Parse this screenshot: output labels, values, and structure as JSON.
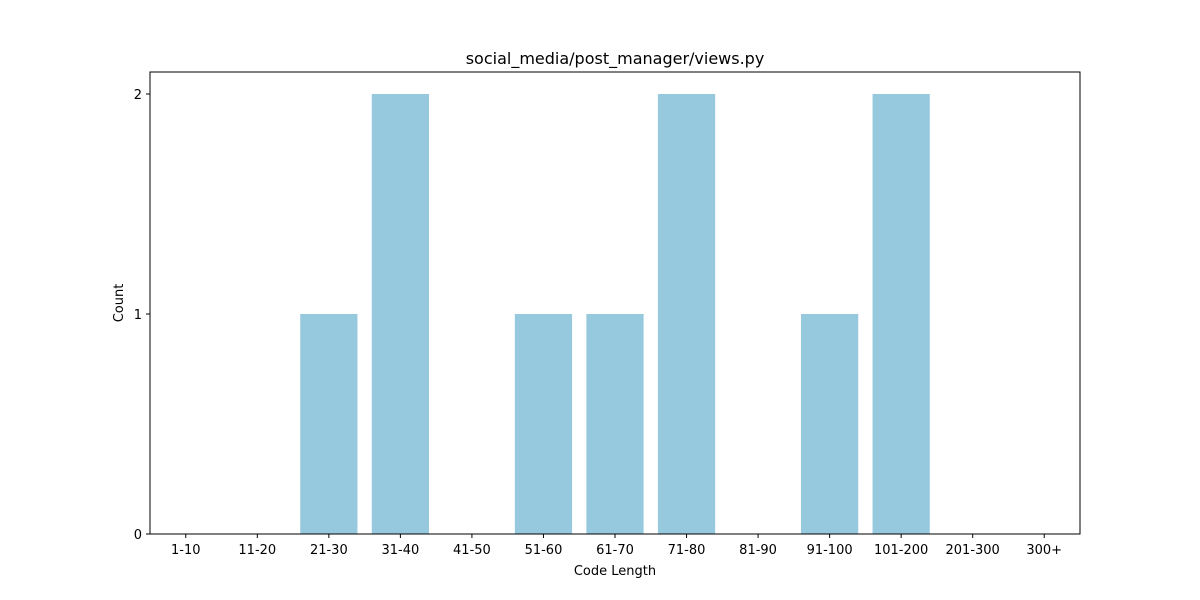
{
  "chart_data": {
    "type": "bar",
    "title": "social_media/post_manager/views.py",
    "xlabel": "Code Length",
    "ylabel": "Count",
    "categories": [
      "1-10",
      "11-20",
      "21-30",
      "31-40",
      "41-50",
      "51-60",
      "61-70",
      "71-80",
      "81-90",
      "91-100",
      "101-200",
      "201-300",
      "300+"
    ],
    "values": [
      0,
      0,
      1,
      2,
      0,
      1,
      1,
      2,
      0,
      1,
      2,
      0,
      0
    ],
    "ylim": [
      0,
      2.1
    ],
    "yticks": [
      0,
      1,
      2
    ],
    "grid": false,
    "legend": "none",
    "bar_color": "#96c9de"
  }
}
